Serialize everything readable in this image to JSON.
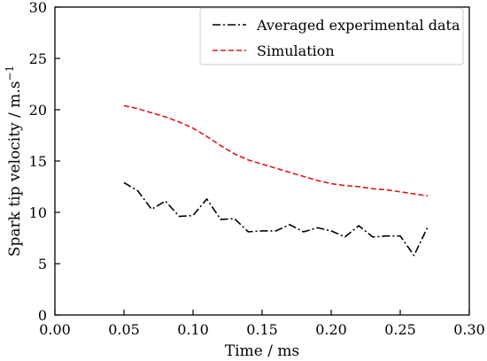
{
  "chart_data": {
    "type": "line",
    "xlabel": "Time / ms",
    "ylabel": "Spark tip velocity / m.s",
    "ylabel_superscript": "−1",
    "xlim": [
      0.0,
      0.3
    ],
    "ylim": [
      0,
      30
    ],
    "x_ticks": [
      "0.00",
      "0.05",
      "0.10",
      "0.15",
      "0.20",
      "0.25",
      "0.30"
    ],
    "y_ticks": [
      "0",
      "5",
      "10",
      "15",
      "20",
      "25",
      "30"
    ],
    "grid": false,
    "legend_position": "top-right",
    "series": [
      {
        "name": "Averaged experimental data",
        "color": "#000000",
        "line_style": "dash-dot",
        "x": [
          0.05,
          0.06,
          0.07,
          0.08,
          0.09,
          0.1,
          0.11,
          0.12,
          0.13,
          0.14,
          0.15,
          0.16,
          0.17,
          0.18,
          0.19,
          0.2,
          0.21,
          0.22,
          0.23,
          0.24,
          0.25,
          0.26,
          0.27
        ],
        "y": [
          12.9,
          12.1,
          10.3,
          11.1,
          9.6,
          9.7,
          11.3,
          9.3,
          9.4,
          8.1,
          8.2,
          8.2,
          8.8,
          8.1,
          8.5,
          8.2,
          7.6,
          8.7,
          7.6,
          7.7,
          7.7,
          5.8,
          8.6
        ]
      },
      {
        "name": "Simulation",
        "color": "#e0161b",
        "line_style": "dashed",
        "x": [
          0.05,
          0.06,
          0.07,
          0.08,
          0.09,
          0.1,
          0.11,
          0.12,
          0.13,
          0.14,
          0.15,
          0.16,
          0.17,
          0.18,
          0.19,
          0.2,
          0.21,
          0.22,
          0.23,
          0.24,
          0.25,
          0.26,
          0.27
        ],
        "y": [
          20.4,
          20.1,
          19.7,
          19.3,
          18.8,
          18.2,
          17.4,
          16.5,
          15.7,
          15.1,
          14.7,
          14.3,
          13.9,
          13.5,
          13.1,
          12.8,
          12.6,
          12.5,
          12.3,
          12.2,
          12.0,
          11.8,
          11.6
        ]
      }
    ]
  }
}
